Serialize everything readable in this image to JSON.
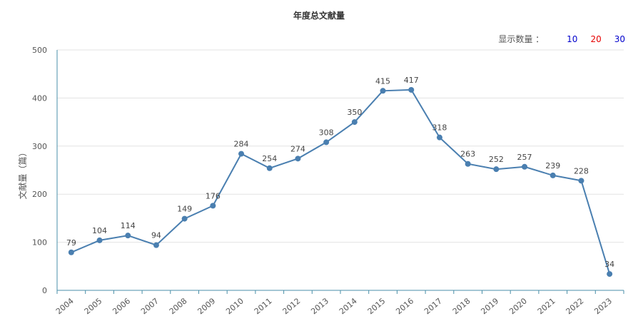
{
  "header": {
    "title": "年度总文献量",
    "count_label": "显示数量 ：",
    "count_options": [
      {
        "label": "10",
        "color": "#0000cc"
      },
      {
        "label": "20",
        "color": "#e60000"
      },
      {
        "label": "30",
        "color": "#0000cc"
      }
    ]
  },
  "chart_data": {
    "type": "line",
    "title": "年度总文献量",
    "xlabel": "",
    "ylabel": "文献量（篇）",
    "ylim": [
      0,
      500
    ],
    "yticks": [
      0,
      100,
      200,
      300,
      400,
      500
    ],
    "grid": true,
    "line_color": "#4a7fb0",
    "categories": [
      "2004",
      "2005",
      "2006",
      "2007",
      "2008",
      "2009",
      "2010",
      "2011",
      "2012",
      "2013",
      "2014",
      "2015",
      "2016",
      "2017",
      "2018",
      "2019",
      "2020",
      "2021",
      "2022",
      "2023"
    ],
    "series": [
      {
        "values": [
          79,
          104,
          114,
          94,
          149,
          176,
          284,
          254,
          274,
          308,
          350,
          415,
          417,
          318,
          263,
          252,
          257,
          239,
          228,
          34
        ]
      }
    ]
  }
}
